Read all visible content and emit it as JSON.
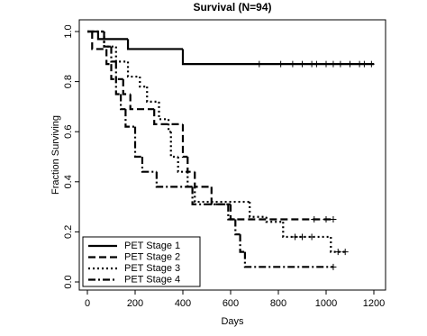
{
  "chart_data": {
    "type": "step",
    "title": "Survival (N=94)",
    "x_label": "Days",
    "y_label": "Fraction Surviving",
    "xlim": [
      0,
      1200
    ],
    "ylim": [
      0,
      1
    ],
    "xticks": [
      0,
      200,
      400,
      600,
      800,
      1000,
      1200
    ],
    "yticks": [
      {
        "value": 0,
        "label": "0.0"
      },
      0.2,
      0.4,
      0.6,
      0.8,
      {
        "value": 1,
        "label": "1.0"
      }
    ],
    "legend": "bottom-left",
    "series": [
      {
        "name": "PET Stage 1",
        "color": "#000000",
        "line_style": "solid",
        "x": [
          0,
          45,
          170,
          400,
          1200
        ],
        "values": [
          1.0,
          0.97,
          0.93,
          0.87,
          0.87
        ],
        "censored": {
          "x": [
            720,
            810,
            860,
            900,
            940,
            960,
            1000,
            1030,
            1060,
            1100,
            1140,
            1160,
            1190
          ],
          "values": [
            0.87,
            0.87,
            0.87,
            0.87,
            0.87,
            0.87,
            0.87,
            0.87,
            0.87,
            0.87,
            0.87,
            0.87,
            0.87
          ]
        }
      },
      {
        "name": "PET Stage 2",
        "color": "#000000",
        "line_style": "dashed",
        "x": [
          0,
          20,
          80,
          100,
          150,
          180,
          280,
          400,
          420,
          450,
          520,
          600,
          1030
        ],
        "values": [
          1.0,
          0.93,
          0.87,
          0.81,
          0.75,
          0.69,
          0.63,
          0.5,
          0.44,
          0.38,
          0.31,
          0.25,
          0.25
        ],
        "censored": {
          "x": [
            950,
            1000,
            1030
          ],
          "values": [
            0.25,
            0.25,
            0.25
          ]
        }
      },
      {
        "name": "PET Stage 3",
        "color": "#000000",
        "line_style": "dotted",
        "x": [
          0,
          70,
          120,
          170,
          220,
          250,
          300,
          340,
          350,
          380,
          420,
          450,
          680,
          750,
          820,
          1020,
          1080
        ],
        "values": [
          1.0,
          0.94,
          0.88,
          0.82,
          0.78,
          0.72,
          0.65,
          0.6,
          0.5,
          0.44,
          0.38,
          0.32,
          0.26,
          0.24,
          0.18,
          0.12,
          0.12
        ],
        "censored": {
          "x": [
            870,
            900,
            940,
            1050,
            1080
          ],
          "values": [
            0.18,
            0.18,
            0.18,
            0.12,
            0.12
          ]
        }
      },
      {
        "name": "PET Stage 4",
        "color": "#000000",
        "line_style": "dashdot",
        "x": [
          0,
          70,
          100,
          120,
          140,
          160,
          200,
          230,
          290,
          440,
          590,
          620,
          640,
          660,
          1030
        ],
        "values": [
          1.0,
          0.94,
          0.88,
          0.75,
          0.69,
          0.62,
          0.5,
          0.44,
          0.38,
          0.31,
          0.25,
          0.19,
          0.12,
          0.06,
          0.06
        ],
        "censored": {
          "x": [
            1030
          ],
          "values": [
            0.06
          ]
        }
      }
    ]
  }
}
